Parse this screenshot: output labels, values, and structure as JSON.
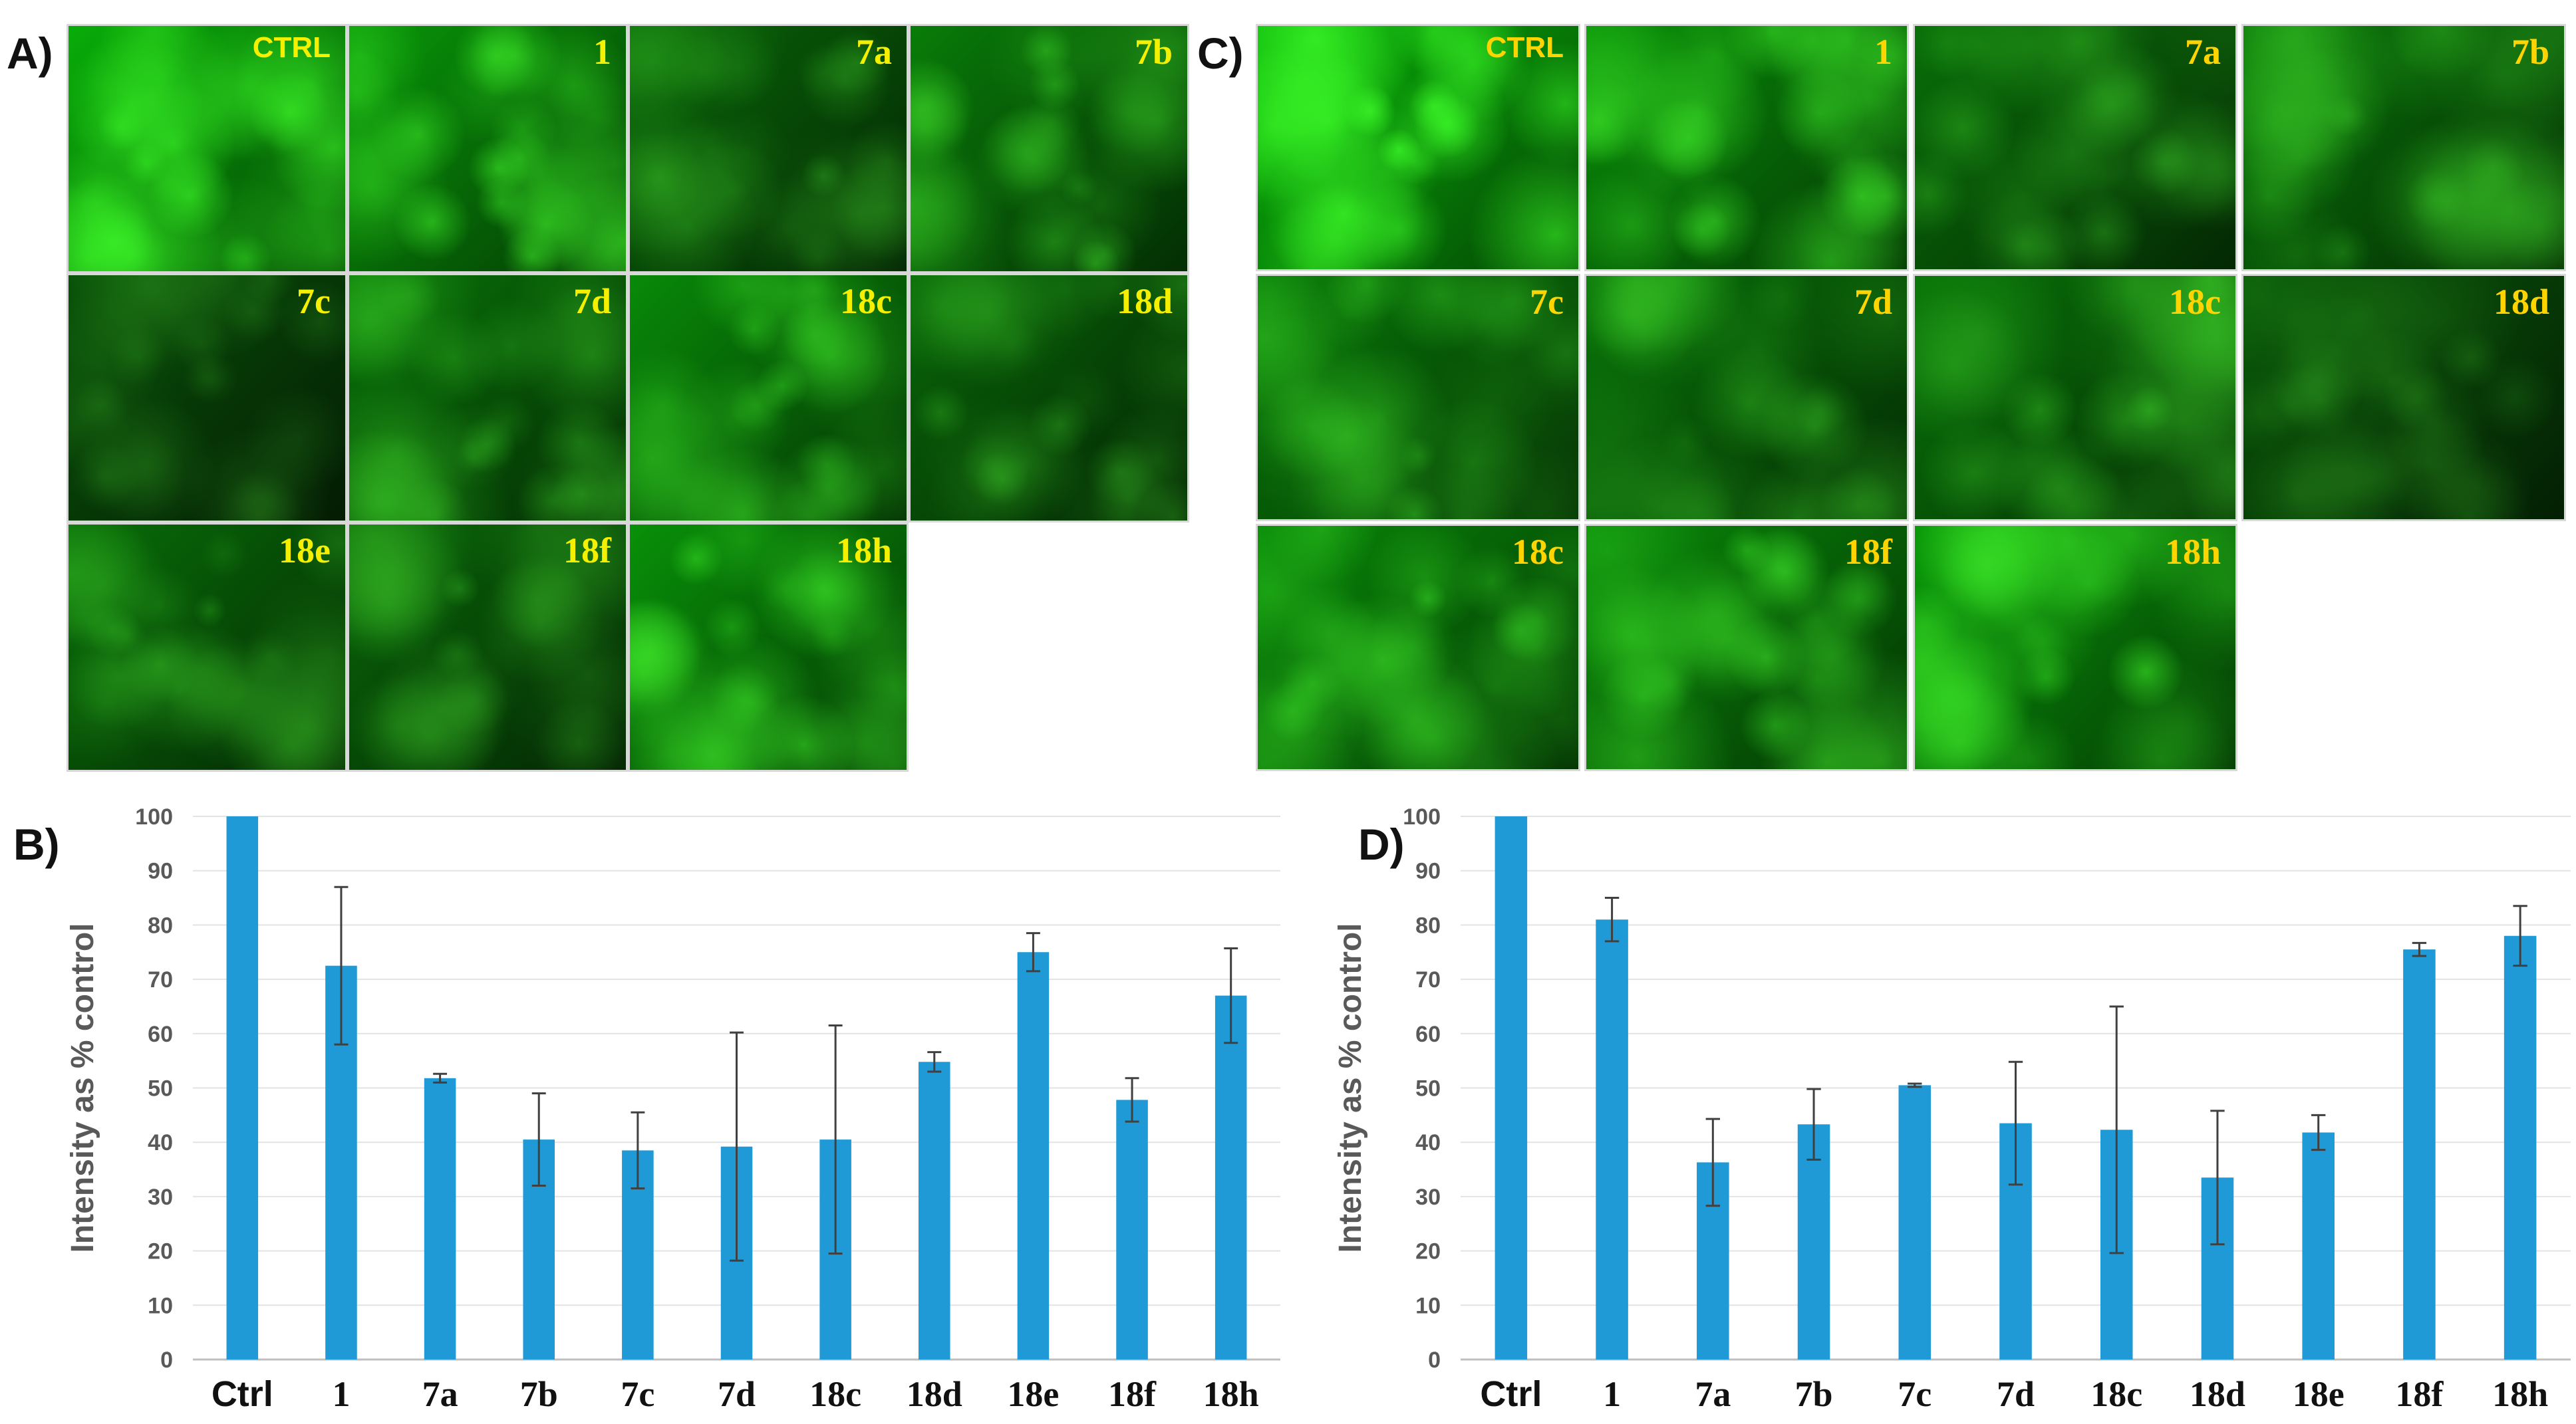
{
  "panels": {
    "a": "A)",
    "b": "B)",
    "c": "C)",
    "d": "D)"
  },
  "colors": {
    "bar": "#1f9ad6",
    "error": "#404040",
    "grid": "#e3e3e3",
    "label_yellow": "#f5f000"
  },
  "micrographs_a": {
    "labels": [
      "CTRL",
      "1",
      "7a",
      "7b",
      "7c",
      "7d",
      "18c",
      "18d",
      "18e",
      "18f",
      "18h"
    ],
    "brightness": [
      0.95,
      0.8,
      0.45,
      0.6,
      0.3,
      0.55,
      0.7,
      0.45,
      0.5,
      0.45,
      0.75
    ]
  },
  "micrographs_c": {
    "labels": [
      "CTRL",
      "1",
      "7a",
      "7b",
      "7c",
      "7d",
      "18c",
      "18d",
      "18c",
      "18f",
      "18h"
    ],
    "brightness": [
      1.0,
      0.75,
      0.5,
      0.55,
      0.6,
      0.55,
      0.55,
      0.35,
      0.7,
      0.7,
      0.8
    ]
  },
  "chart_data": [
    {
      "type": "bar",
      "panel": "B)",
      "ylabel": "Intensity as % control",
      "xlabel": "",
      "ylim": [
        0,
        100
      ],
      "yticks": [
        0,
        10,
        20,
        30,
        40,
        50,
        60,
        70,
        80,
        90,
        100
      ],
      "grid": true,
      "categories": [
        "Ctrl",
        "1",
        "7a",
        "7b",
        "7c",
        "7d",
        "18c",
        "18d",
        "18e",
        "18f",
        "18h"
      ],
      "values": [
        100,
        72.5,
        51.8,
        40.5,
        38.5,
        39.2,
        40.5,
        54.8,
        75,
        47.8,
        67
      ],
      "errors": [
        0,
        14.5,
        0.8,
        8.5,
        7,
        21,
        21,
        1.8,
        3.5,
        4,
        8.7
      ]
    },
    {
      "type": "bar",
      "panel": "D)",
      "ylabel": "Intensity as % control",
      "xlabel": "",
      "ylim": [
        0,
        100
      ],
      "yticks": [
        0,
        10,
        20,
        30,
        40,
        50,
        60,
        70,
        80,
        90,
        100
      ],
      "grid": true,
      "categories": [
        "Ctrl",
        "1",
        "7a",
        "7b",
        "7c",
        "7d",
        "18c",
        "18d",
        "18e",
        "18f",
        "18h"
      ],
      "values": [
        100,
        81,
        36.3,
        43.3,
        50.5,
        43.5,
        42.3,
        33.5,
        41.8,
        75.5,
        78
      ],
      "errors": [
        0,
        4,
        8,
        6.5,
        0.3,
        11.3,
        22.7,
        12.3,
        3.2,
        1.2,
        5.5
      ]
    }
  ]
}
